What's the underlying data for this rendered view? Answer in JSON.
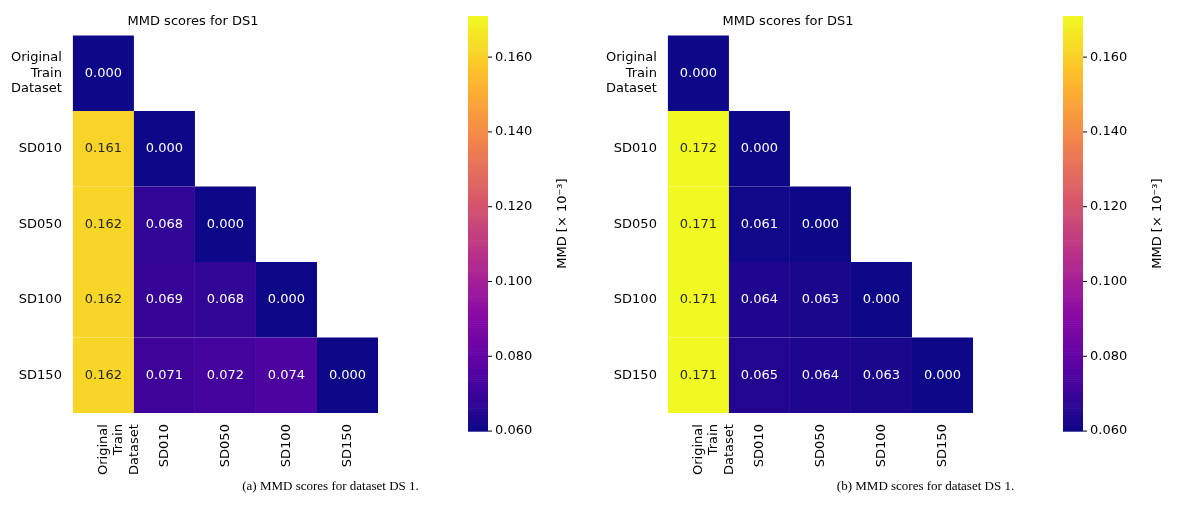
{
  "chart_data": [
    {
      "type": "heatmap",
      "title": "MMD scores for DS1",
      "categories": [
        "Original Train Dataset",
        "SD010",
        "SD050",
        "SD100",
        "SD150"
      ],
      "y_categories": [
        "Original Train Dataset",
        "SD010",
        "SD050",
        "SD100",
        "SD150"
      ],
      "cells": [
        [
          0.0,
          null,
          null,
          null,
          null
        ],
        [
          0.161,
          0.0,
          null,
          null,
          null
        ],
        [
          0.162,
          0.068,
          0.0,
          null,
          null
        ],
        [
          0.162,
          0.069,
          0.068,
          0.0,
          null
        ],
        [
          0.162,
          0.071,
          0.072,
          0.074,
          0.0
        ]
      ],
      "cell_labels": [
        [
          "0.000",
          null,
          null,
          null,
          null
        ],
        [
          "0.161",
          "0.000",
          null,
          null,
          null
        ],
        [
          "0.162",
          "0.068",
          "0.000",
          null,
          null
        ],
        [
          "0.162",
          "0.069",
          "0.068",
          "0.000",
          null
        ],
        [
          "0.162",
          "0.071",
          "0.072",
          "0.074",
          "0.000"
        ]
      ],
      "clim": [
        0.06,
        0.171
      ],
      "cticks": [
        {
          "value": 0.06,
          "label": "0.060"
        },
        {
          "value": 0.08,
          "label": "0.080"
        },
        {
          "value": 0.1,
          "label": "0.100"
        },
        {
          "value": 0.12,
          "label": "0.120"
        },
        {
          "value": 0.14,
          "label": "0.140"
        },
        {
          "value": 0.16,
          "label": "0.160"
        }
      ],
      "clabel": "MMD [× 10⁻³]",
      "annotations": [
        "(a) MMD scores for dataset DS 1."
      ]
    },
    {
      "type": "heatmap",
      "title": "MMD scores for DS1",
      "categories": [
        "Original Train Dataset",
        "SD010",
        "SD050",
        "SD100",
        "SD150"
      ],
      "y_categories": [
        "Original Train Dataset",
        "SD010",
        "SD050",
        "SD100",
        "SD150"
      ],
      "cells": [
        [
          0.0,
          null,
          null,
          null,
          null
        ],
        [
          0.172,
          0.0,
          null,
          null,
          null
        ],
        [
          0.171,
          0.061,
          0.0,
          null,
          null
        ],
        [
          0.171,
          0.064,
          0.063,
          0.0,
          null
        ],
        [
          0.171,
          0.065,
          0.064,
          0.063,
          0.0
        ]
      ],
      "cell_labels": [
        [
          "0.000",
          null,
          null,
          null,
          null
        ],
        [
          "0.172",
          "0.000",
          null,
          null,
          null
        ],
        [
          "0.171",
          "0.061",
          "0.000",
          null,
          null
        ],
        [
          "0.171",
          "0.064",
          "0.063",
          "0.000",
          null
        ],
        [
          "0.171",
          "0.065",
          "0.064",
          "0.063",
          "0.000"
        ]
      ],
      "clim": [
        0.06,
        0.171
      ],
      "cticks": [
        {
          "value": 0.06,
          "label": "0.060"
        },
        {
          "value": 0.08,
          "label": "0.080"
        },
        {
          "value": 0.1,
          "label": "0.100"
        },
        {
          "value": 0.12,
          "label": "0.120"
        },
        {
          "value": 0.14,
          "label": "0.140"
        },
        {
          "value": 0.16,
          "label": "0.160"
        }
      ],
      "clabel": "MMD [× 10⁻³]",
      "annotations": [
        "(b) MMD scores for dataset DS 1."
      ]
    }
  ]
}
